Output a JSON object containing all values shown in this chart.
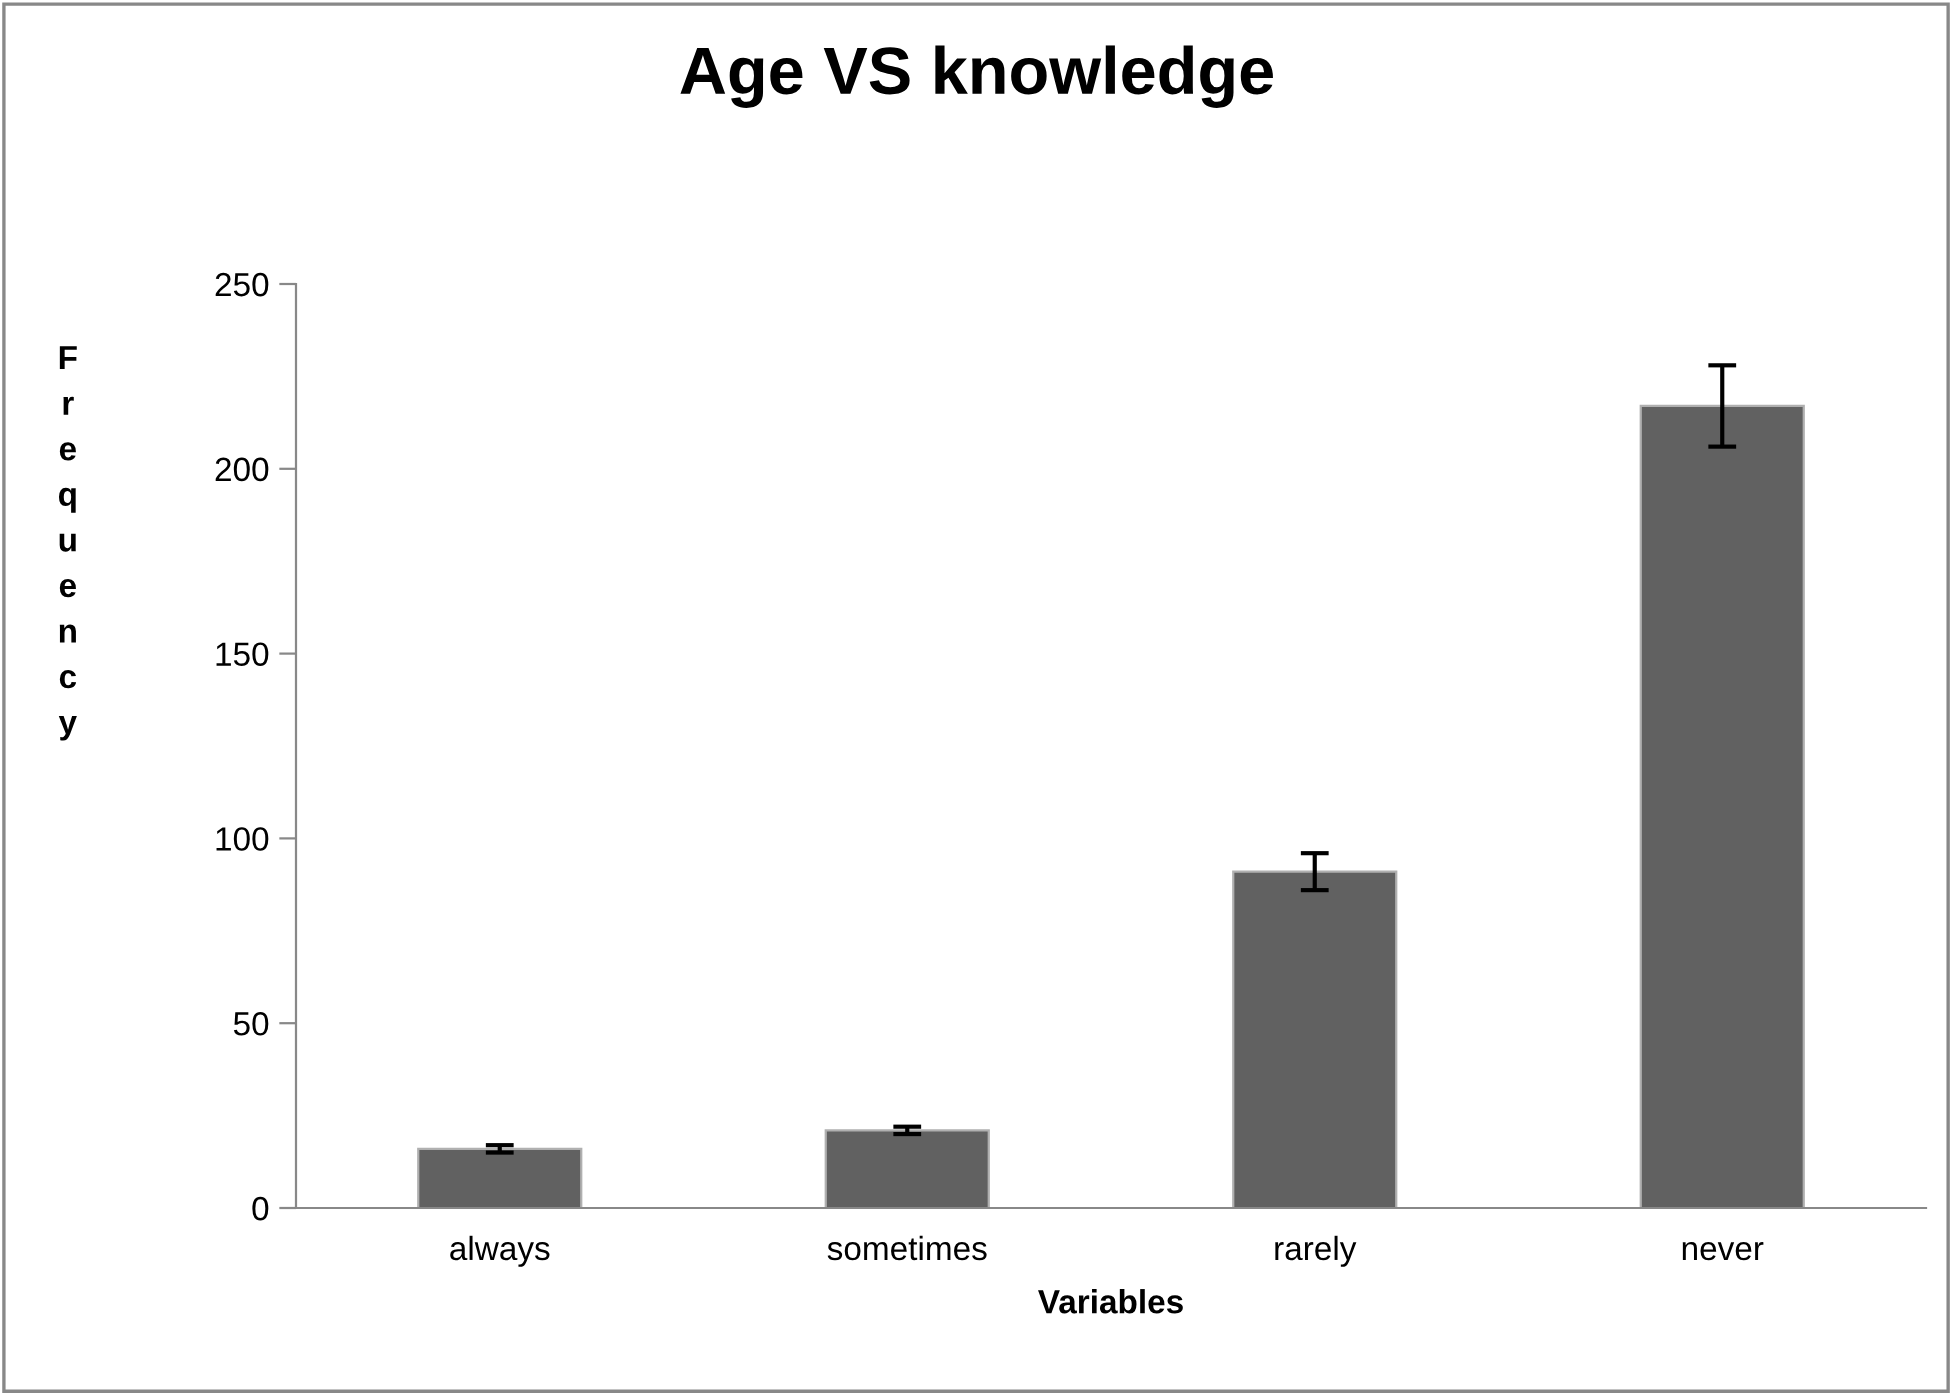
{
  "chart_data": {
    "type": "bar",
    "title": "Age VS knowledge",
    "xlabel": "Variables",
    "ylabel": "Frequency",
    "categories": [
      "always",
      "sometimes",
      "rarely",
      "never"
    ],
    "values": [
      16,
      21,
      91,
      217
    ],
    "errors": [
      1,
      1,
      5,
      11
    ],
    "color": "#616161",
    "ylim": [
      0,
      250
    ],
    "yticks": [
      0,
      50,
      100,
      150,
      200,
      250
    ],
    "grid": false,
    "legend": false
  }
}
